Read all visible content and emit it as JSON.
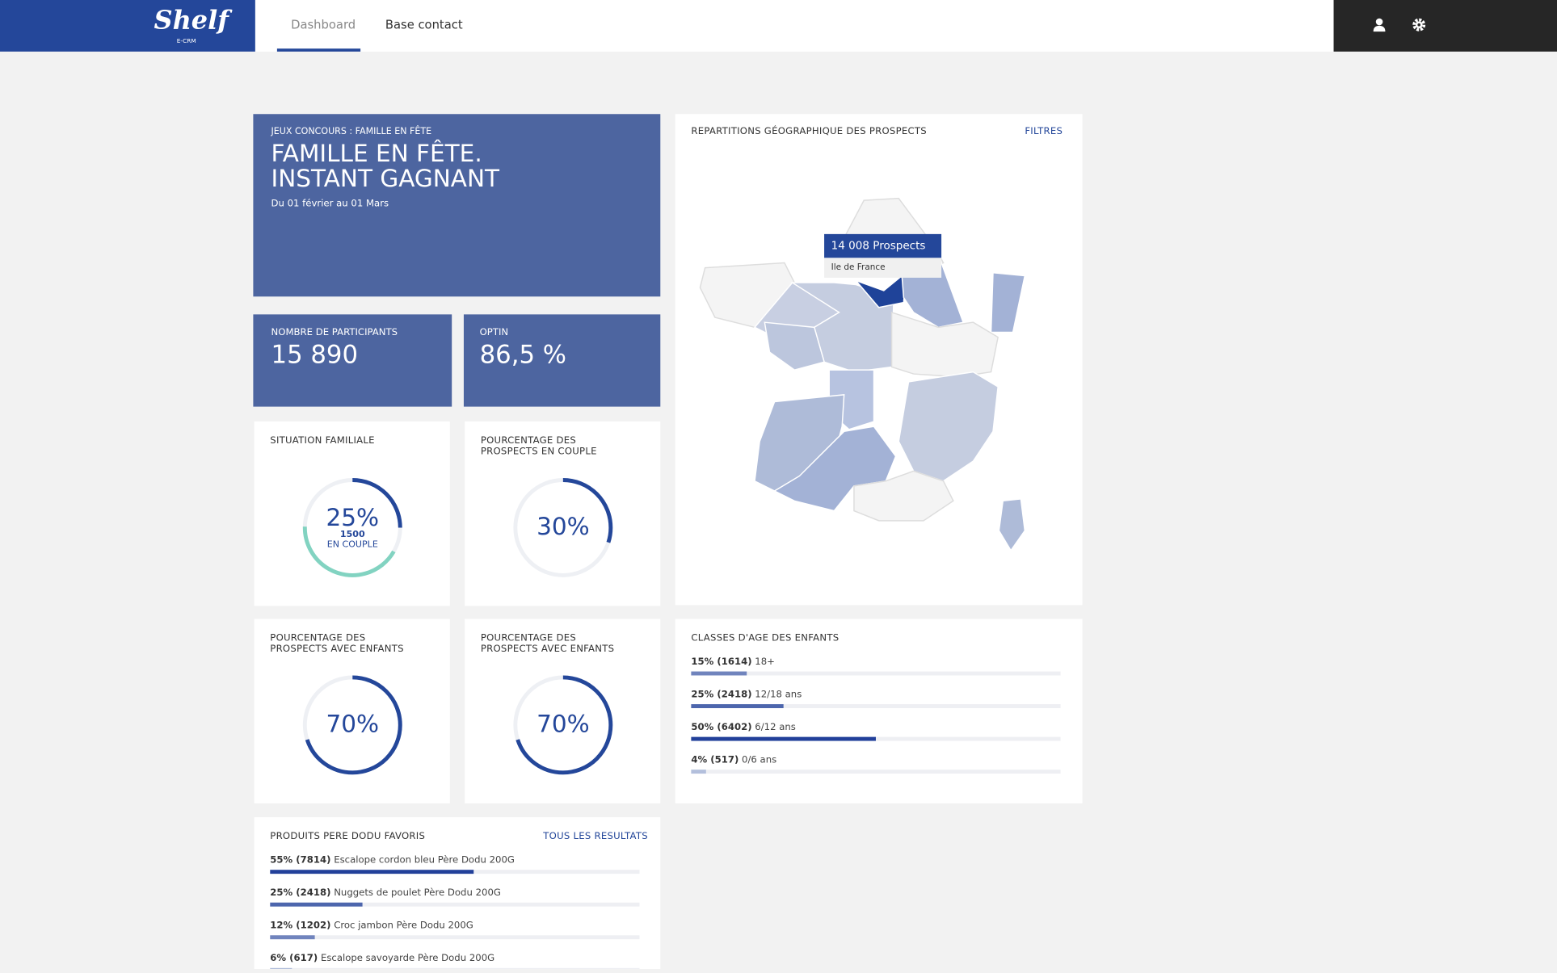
{
  "header": {
    "logo": "Shelf",
    "logo_sub": "E-CRM",
    "nav": [
      "Dashboard",
      "Base contact"
    ]
  },
  "campaign": {
    "kicker": "JEUX CONCOURS : FAMILLE EN FÊTE",
    "title_lines": [
      "FAMILLE EN FÊTE.",
      "INSTANT GAGNANT"
    ],
    "dates": "Du 01 février au 01 Mars"
  },
  "kpis": [
    {
      "label": "NOMBRE DE PARTICIPANTS",
      "value": "15 890"
    },
    {
      "label": "OPTIN",
      "value": "86,5 %"
    }
  ],
  "donuts": [
    {
      "title_lines": [
        "SITUATION FAMILIALE"
      ],
      "percent": 25,
      "percent_label": "25%",
      "count": 1500,
      "sublabel": "EN COUPLE"
    },
    {
      "title_lines": [
        "POURCENTAGE DES",
        "PROSPECTS EN COUPLE"
      ],
      "percent": 30,
      "percent_label": "30%"
    },
    {
      "title_lines": [
        "POURCENTAGE DES",
        "PROSPECTS AVEC ENFANTS"
      ],
      "percent": 70,
      "percent_label": "70%"
    },
    {
      "title_lines": [
        "POURCENTAGE DES",
        "PROSPECTS AVEC ENFANTS"
      ],
      "percent": 70,
      "percent_label": "70%"
    }
  ],
  "map": {
    "title": "REPARTITIONS GÉOGRAPHIQUE DES PROSPECTS",
    "action": "FILTRES",
    "tooltip": {
      "value": "14 008 Prospects",
      "region": "Ile de France"
    }
  },
  "age_classes": {
    "title": "CLASSES D'AGE DES ENFANTS",
    "items": [
      {
        "percent": 15,
        "label": "15% (1614)",
        "name": "18+",
        "color": "#7084bd"
      },
      {
        "percent": 25,
        "label": "25% (2418)",
        "name": "12/18 ans",
        "color": "#4d66ad"
      },
      {
        "percent": 50,
        "label": "50% (6402)",
        "name": "6/12 ans",
        "color": "#22409a"
      },
      {
        "percent": 4,
        "label": "4% (517)",
        "name": "0/6 ans",
        "color": "#b3bfdc"
      }
    ]
  },
  "products": {
    "title": "PRODUITS PERE DODU FAVORIS",
    "action": "TOUS LES RESULTATS",
    "items": [
      {
        "percent": 55,
        "label": "55% (7814)",
        "name": "Escalope cordon bleu Père Dodu 200G",
        "color": "#22409a"
      },
      {
        "percent": 25,
        "label": "25% (2418)",
        "name": "Nuggets de poulet Père Dodu 200G",
        "color": "#4d66ad"
      },
      {
        "percent": 12,
        "label": "12% (1202)",
        "name": "Croc jambon Père Dodu 200G",
        "color": "#7084bd"
      },
      {
        "percent": 6,
        "label": "6% (617)",
        "name": "Escalope savoyarde Père Dodu 200G",
        "color": "#b3bfdc"
      }
    ]
  }
}
